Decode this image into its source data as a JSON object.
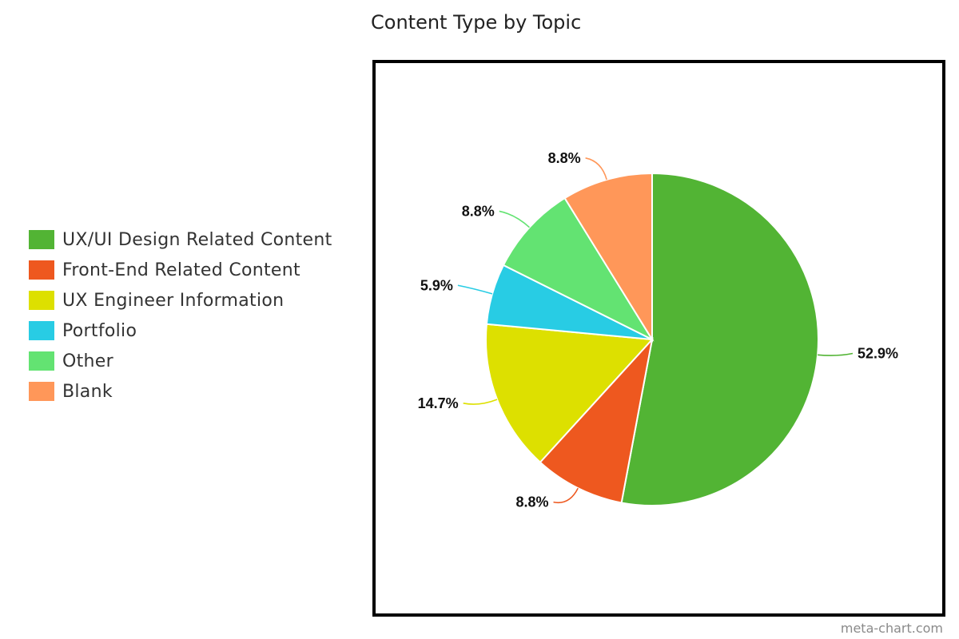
{
  "chart_data": {
    "type": "pie",
    "title": "Content Type by Topic",
    "legend_position": "left",
    "slices": [
      {
        "label": "UX/UI Design Related Content",
        "value": 52.9,
        "display": "52.9%",
        "color": "#52b434"
      },
      {
        "label": "Front-End Related Content",
        "value": 8.8,
        "display": "8.8%",
        "color": "#ee581f"
      },
      {
        "label": "UX Engineer Information",
        "value": 14.7,
        "display": "14.7%",
        "color": "#dde000"
      },
      {
        "label": "Portfolio",
        "value": 5.9,
        "display": "5.9%",
        "color": "#28cce4"
      },
      {
        "label": "Other",
        "value": 8.8,
        "display": "8.8%",
        "color": "#63e372"
      },
      {
        "label": "Blank",
        "value": 8.8,
        "display": "8.8%",
        "color": "#ff9759"
      }
    ]
  },
  "watermark": "meta-chart.com"
}
